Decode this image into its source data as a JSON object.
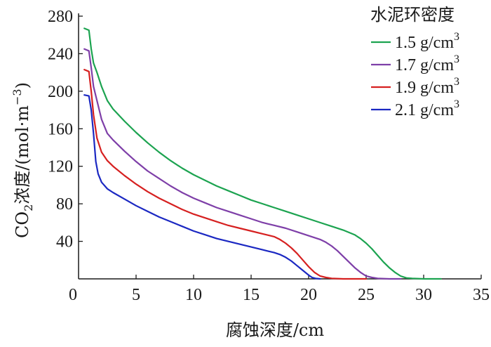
{
  "chart_data": {
    "type": "line",
    "xlabel": "腐蚀深度/cm",
    "ylabel": {
      "prefix": "CO",
      "sub": "2",
      "middle": "浓度/(mol·m",
      "sup": "−3",
      "suffix": ")"
    },
    "xlim": [
      0,
      35
    ],
    "ylim": [
      0,
      280
    ],
    "xticks": [
      0,
      5,
      10,
      15,
      20,
      25,
      30,
      35
    ],
    "yticks": [
      40,
      80,
      120,
      160,
      200,
      240,
      280
    ],
    "grid": false,
    "legend": {
      "title": "水泥环密度",
      "placement": "top-right",
      "unit": "g/cm",
      "unit_sup": "3"
    },
    "series": [
      {
        "name": "1.5",
        "color": "#1ca350",
        "x": [
          0.5,
          0.9,
          1.1,
          1.3,
          1.6,
          2,
          2.5,
          3,
          4,
          5,
          6,
          7,
          8,
          9,
          10,
          11,
          12,
          13,
          14,
          15,
          16,
          17,
          18,
          19,
          20,
          21,
          22,
          23,
          24,
          24.5,
          25,
          25.5,
          26,
          26.5,
          27,
          27.5,
          28,
          28.5,
          29,
          30,
          31.5
        ],
        "y": [
          267,
          265,
          245,
          230,
          220,
          205,
          190,
          181,
          168,
          156,
          145,
          135,
          126,
          118,
          111,
          105,
          99,
          94,
          89,
          84,
          80,
          76,
          72,
          68,
          64,
          60,
          56,
          52,
          47,
          43,
          38,
          32,
          25,
          18,
          12,
          7,
          3,
          1,
          0.5,
          0,
          0
        ]
      },
      {
        "name": "1.7",
        "color": "#7e3fa8",
        "x": [
          0.5,
          0.9,
          1.1,
          1.3,
          1.6,
          2,
          2.5,
          3,
          4,
          5,
          6,
          7,
          8,
          9,
          10,
          11,
          12,
          13,
          14,
          15,
          16,
          17,
          18,
          19,
          20,
          21,
          21.5,
          22,
          22.5,
          23,
          23.5,
          24,
          24.5,
          25,
          25.5,
          26,
          27,
          28
        ],
        "y": [
          245,
          243,
          225,
          205,
          190,
          170,
          155,
          148,
          136,
          125,
          115,
          107,
          99,
          92,
          86,
          81,
          76,
          72,
          68,
          64,
          60,
          57,
          54,
          50,
          46,
          42,
          39,
          35,
          30,
          24,
          18,
          12,
          7,
          3,
          1.5,
          0.5,
          0,
          0
        ]
      },
      {
        "name": "1.9",
        "color": "#d62020",
        "x": [
          0.5,
          0.9,
          1.1,
          1.3,
          1.6,
          2,
          2.5,
          3,
          4,
          5,
          6,
          7,
          8,
          9,
          10,
          11,
          12,
          13,
          14,
          15,
          16,
          17,
          17.5,
          18,
          18.5,
          19,
          19.5,
          20,
          20.5,
          21,
          21.5,
          22,
          23,
          24,
          25
        ],
        "y": [
          223,
          221,
          200,
          175,
          150,
          135,
          126,
          120,
          110,
          101,
          93,
          86,
          80,
          74,
          69,
          65,
          61,
          57,
          54,
          51,
          48,
          45,
          42,
          38,
          33,
          27,
          20,
          13,
          7,
          3,
          1.5,
          0.5,
          0,
          0,
          0
        ]
      },
      {
        "name": "2.1",
        "color": "#1b28c2",
        "x": [
          0.5,
          0.9,
          1.1,
          1.3,
          1.5,
          1.7,
          2,
          2.5,
          3,
          4,
          5,
          6,
          7,
          8,
          9,
          10,
          11,
          12,
          13,
          14,
          15,
          16,
          17,
          17.5,
          18,
          18.5,
          19,
          19.5,
          20,
          20.3,
          20.6,
          21
        ],
        "y": [
          196,
          195,
          180,
          155,
          125,
          112,
          103,
          96,
          92,
          85,
          78,
          72,
          66,
          61,
          56,
          51,
          47,
          43,
          40,
          37,
          34,
          31,
          28,
          26,
          23,
          19,
          14,
          9,
          4,
          1.5,
          0.5,
          0
        ]
      }
    ]
  }
}
